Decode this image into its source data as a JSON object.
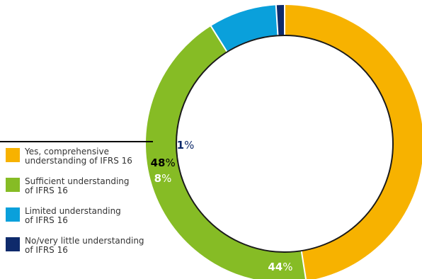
{
  "chart_data": {
    "type": "pie",
    "donut": true,
    "categories": [
      "Yes, comprehensive understanding of IFRS 16",
      "Sufficient understanding of IFRS 16",
      "Limited understanding of IFRS 16",
      "No/very little understanding of IFRS 16"
    ],
    "values": [
      48,
      44,
      8,
      1
    ],
    "value_labels": [
      "48",
      "44",
      "8",
      "1"
    ],
    "unit": "%",
    "colors": [
      "#F7B200",
      "#86BC25",
      "#0AA0DB",
      "#0E2A6B"
    ],
    "legend_position": "left"
  },
  "legend": [
    {
      "label": "Yes, comprehensive\nunderstanding of IFRS 16",
      "color": "#F7B200"
    },
    {
      "label": "Sufficient understanding\nof IFRS 16",
      "color": "#86BC25"
    },
    {
      "label": "Limited understanding\nof IFRS 16",
      "color": "#0AA0DB"
    },
    {
      "label": "No/very little understanding\nof IFRS 16",
      "color": "#0E2A6B"
    }
  ]
}
